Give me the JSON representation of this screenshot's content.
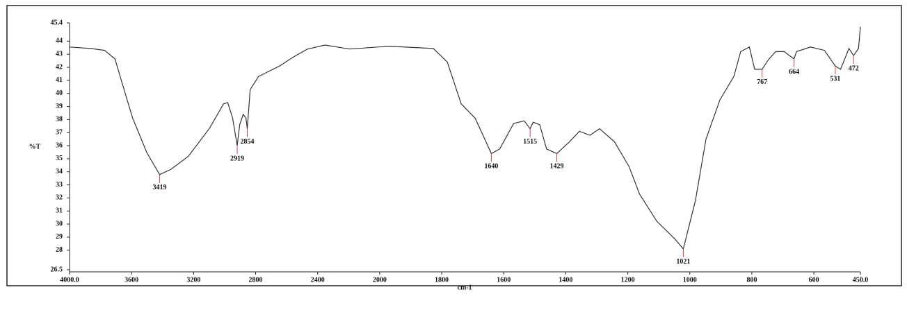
{
  "chart_data": {
    "type": "line",
    "x_label": "cm-1",
    "y_label": "%T",
    "xlim": [
      4000,
      450
    ],
    "ylim": [
      26.5,
      45.4
    ],
    "xticks": [
      {
        "value": 4000,
        "label": "4000.0"
      },
      3600,
      3200,
      2800,
      2400,
      2000,
      1800,
      1600,
      1400,
      1200,
      1000,
      800,
      600,
      {
        "value": 450,
        "label": "450.0"
      }
    ],
    "yticks": [
      26.5,
      28,
      29,
      30,
      31,
      32,
      33,
      34,
      35,
      36,
      37,
      38,
      39,
      40,
      41,
      42,
      43,
      44,
      45.4
    ],
    "series": [
      {
        "color": "#333333",
        "x": [
          4000,
          3865,
          3774,
          3707,
          3661,
          3594,
          3503,
          3419,
          3345,
          3233,
          3097,
          3007,
          2980,
          2948,
          2919,
          2903,
          2880,
          2862,
          2854,
          2835,
          2781,
          2646,
          2555,
          2465,
          2352,
          2194,
          2014,
          1962,
          1827,
          1782,
          1737,
          1692,
          1640,
          1613,
          1568,
          1534,
          1515,
          1505,
          1484,
          1462,
          1429,
          1388,
          1356,
          1322,
          1291,
          1243,
          1196,
          1162,
          1106,
          1050,
          1021,
          982,
          948,
          903,
          858,
          836,
          808,
          791,
          767,
          746,
          723,
          696,
          664,
          656,
          611,
          566,
          531,
          514,
          487,
          472,
          456,
          450
        ],
        "values": [
          43.55,
          43.44,
          43.3,
          42.64,
          40.79,
          38.14,
          35.5,
          33.79,
          34.2,
          35.2,
          37.34,
          39.2,
          39.3,
          38.1,
          36.0,
          37.6,
          38.4,
          38.1,
          37.3,
          40.3,
          41.3,
          42.1,
          42.8,
          43.4,
          43.7,
          43.4,
          43.55,
          43.6,
          43.44,
          42.4,
          39.2,
          38.1,
          35.4,
          35.75,
          37.7,
          37.9,
          37.3,
          37.8,
          37.6,
          35.75,
          35.4,
          36.3,
          37.1,
          36.8,
          37.3,
          36.3,
          34.4,
          32.3,
          30.2,
          28.9,
          28.1,
          31.8,
          36.5,
          39.5,
          41.3,
          43.2,
          43.55,
          41.85,
          41.85,
          42.6,
          43.2,
          43.2,
          42.64,
          43.2,
          43.55,
          43.3,
          42.1,
          41.85,
          43.44,
          42.9,
          43.44,
          45.1
        ]
      }
    ],
    "annotations": [
      {
        "text": "3419",
        "x": 3419,
        "y": 33.79
      },
      {
        "text": "2919",
        "x": 2919,
        "y": 36.0
      },
      {
        "text": "2854",
        "x": 2854,
        "y": 37.3
      },
      {
        "text": "1640",
        "x": 1640,
        "y": 35.4
      },
      {
        "text": "1515",
        "x": 1515,
        "y": 37.3
      },
      {
        "text": "1429",
        "x": 1429,
        "y": 35.4
      },
      {
        "text": "1021",
        "x": 1021,
        "y": 28.1
      },
      {
        "text": "767",
        "x": 767,
        "y": 41.85
      },
      {
        "text": "664",
        "x": 664,
        "y": 42.64
      },
      {
        "text": "531",
        "x": 531,
        "y": 42.1
      },
      {
        "text": "472",
        "x": 472,
        "y": 42.9
      }
    ]
  }
}
